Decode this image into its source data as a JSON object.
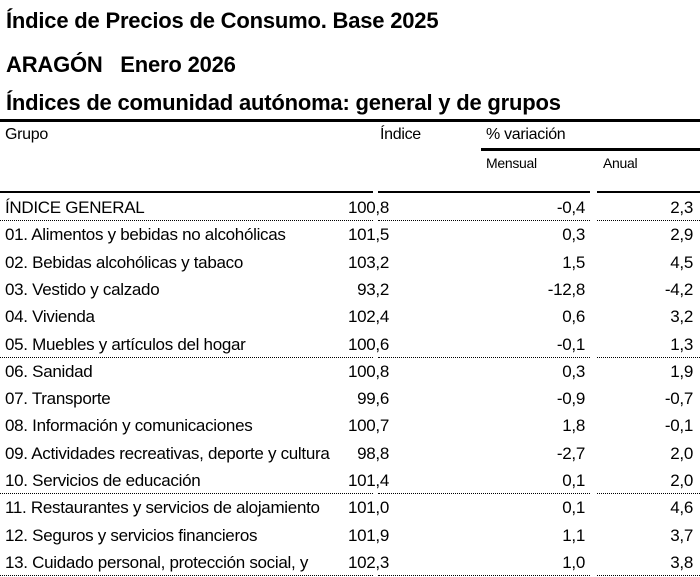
{
  "title": "Índice de Precios de Consumo. Base 2025",
  "subtitle": "ARAGÓN   Enero 2026",
  "table_title": "Índices de comunidad autónoma: general y de grupos",
  "headers": {
    "group": "Grupo",
    "index": "Índice",
    "variation": "% variación",
    "monthly": "Mensual",
    "annual": "Anual"
  },
  "rows": [
    {
      "group": "ÍNDICE GENERAL",
      "index": "100,8",
      "monthly": "-0,4",
      "annual": "2,3",
      "sep": true
    },
    {
      "group": "01. Alimentos y bebidas no alcohólicas",
      "index": "101,5",
      "monthly": "0,3",
      "annual": "2,9"
    },
    {
      "group": "02. Bebidas alcohólicas y tabaco",
      "index": "103,2",
      "monthly": "1,5",
      "annual": "4,5"
    },
    {
      "group": "03. Vestido y calzado",
      "index": "93,2",
      "monthly": "-12,8",
      "annual": "-4,2"
    },
    {
      "group": "04. Vivienda",
      "index": "102,4",
      "monthly": "0,6",
      "annual": "3,2"
    },
    {
      "group": "05. Muebles y artículos del hogar",
      "index": "100,6",
      "monthly": "-0,1",
      "annual": "1,3",
      "sep": true
    },
    {
      "group": "06. Sanidad",
      "index": "100,8",
      "monthly": "0,3",
      "annual": "1,9"
    },
    {
      "group": "07. Transporte",
      "index": "99,6",
      "monthly": "-0,9",
      "annual": "-0,7"
    },
    {
      "group": "08. Información y comunicaciones",
      "index": "100,7",
      "monthly": "1,8",
      "annual": "-0,1"
    },
    {
      "group": "09. Actividades recreativas, deporte y cultura",
      "index": "98,8",
      "monthly": "-2,7",
      "annual": "2,0"
    },
    {
      "group": "10. Servicios de educación",
      "index": "101,4",
      "monthly": "0,1",
      "annual": "2,0",
      "sep": true
    },
    {
      "group": "11. Restaurantes y servicios de alojamiento",
      "index": "101,0",
      "monthly": "0,1",
      "annual": "4,6"
    },
    {
      "group": "12. Seguros y servicios financieros",
      "index": "101,9",
      "monthly": "1,1",
      "annual": "3,7"
    },
    {
      "group": "13. Cuidado personal, protección social, y",
      "index": "102,3",
      "monthly": "1,0",
      "annual": "3,8",
      "sep": true
    }
  ]
}
